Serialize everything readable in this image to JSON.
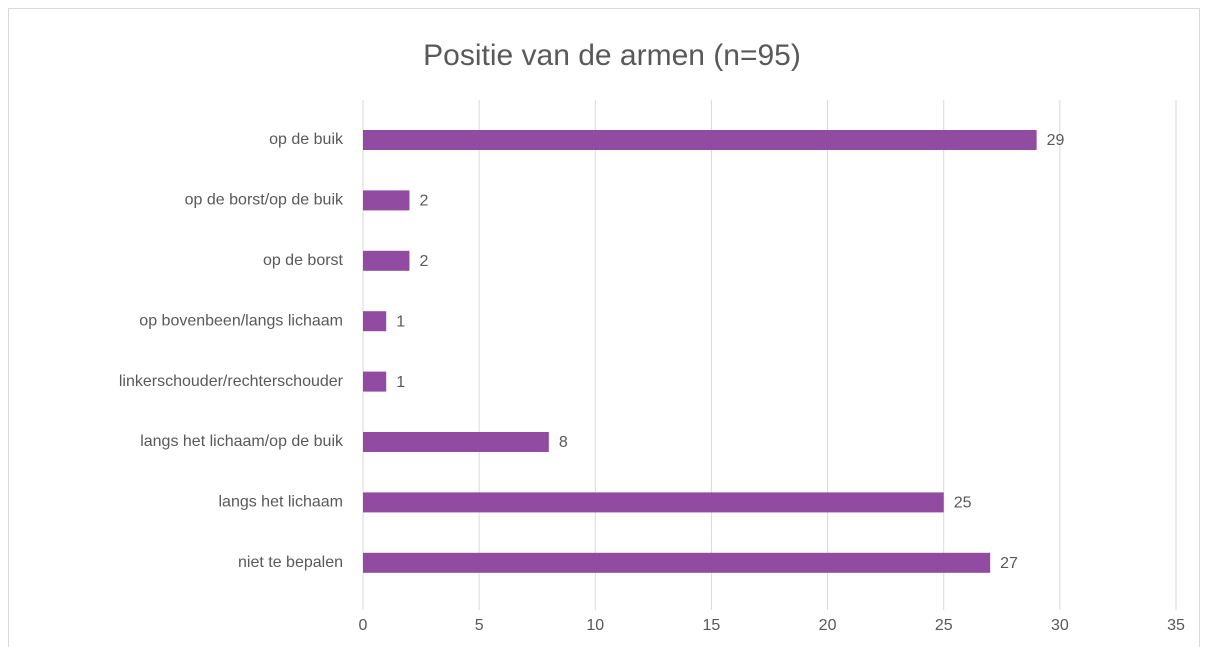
{
  "chart_data": {
    "type": "bar",
    "orientation": "horizontal",
    "title": "Positie van de armen (n=95)",
    "categories": [
      "op de buik",
      "op de borst/op de buik",
      "op de borst",
      "op bovenbeen/langs lichaam",
      "linkerschouder/rechterschouder",
      "langs het lichaam/op de buik",
      "langs het lichaam",
      "niet te bepalen"
    ],
    "values": [
      29,
      2,
      2,
      1,
      1,
      8,
      25,
      27
    ],
    "color": "#914ba1",
    "xlim": [
      0,
      35
    ],
    "xticks": [
      0,
      5,
      10,
      15,
      20,
      25,
      30,
      35
    ],
    "grid": true
  }
}
